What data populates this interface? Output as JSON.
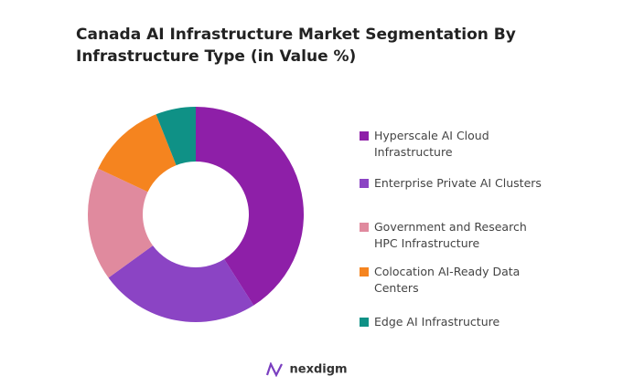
{
  "chart_data": {
    "type": "donut",
    "title": "Canada AI Infrastructure Market Segmentation By Infrastructure Type (in Value %)",
    "categories": [
      "Hyperscale AI Cloud Infrastructure",
      "Enterprise Private AI Clusters",
      "Government and Research HPC Infrastructure",
      "Colocation AI-Ready Data Centers",
      "Edge AI Infrastructure"
    ],
    "values": [
      41,
      24,
      17,
      12,
      6
    ],
    "colors": [
      "#8e1fa8",
      "#8b44c4",
      "#e08a9e",
      "#f5841f",
      "#0f9186"
    ],
    "legend": "right"
  },
  "brand": "nexdigm"
}
